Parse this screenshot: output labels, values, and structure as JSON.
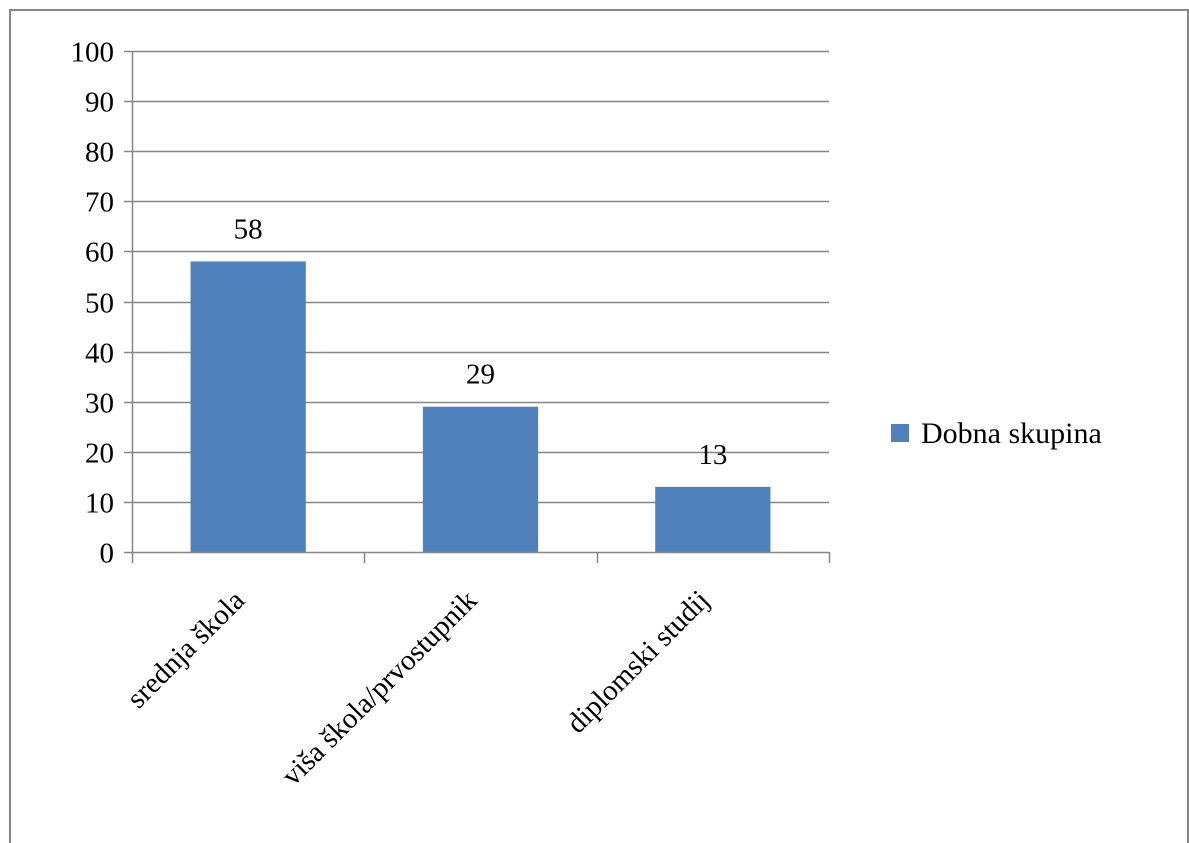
{
  "chart_data": {
    "type": "bar",
    "categories": [
      "srednja škola",
      "viša škola/prvostupnik",
      "diplomski studij"
    ],
    "series": [
      {
        "name": "Dobna skupina",
        "values": [
          58,
          29,
          13
        ],
        "data_labels": [
          "58",
          "29",
          "13"
        ],
        "color": "#4F81BD"
      }
    ],
    "title": "",
    "xlabel": "",
    "ylabel": "",
    "ylim": [
      0,
      100
    ],
    "yticks": [
      0,
      10,
      20,
      30,
      40,
      50,
      60,
      70,
      80,
      90,
      100
    ],
    "ytick_labels": [
      "0",
      "10",
      "20",
      "30",
      "40",
      "50",
      "60",
      "70",
      "80",
      "90",
      "100"
    ],
    "grid": true,
    "legend": {
      "position": "right",
      "entries": [
        "Dobna skupina"
      ]
    },
    "colors": {
      "bar": "#4F81BD",
      "gridline": "#868686",
      "axis": "#868686",
      "border": "#868686"
    }
  }
}
